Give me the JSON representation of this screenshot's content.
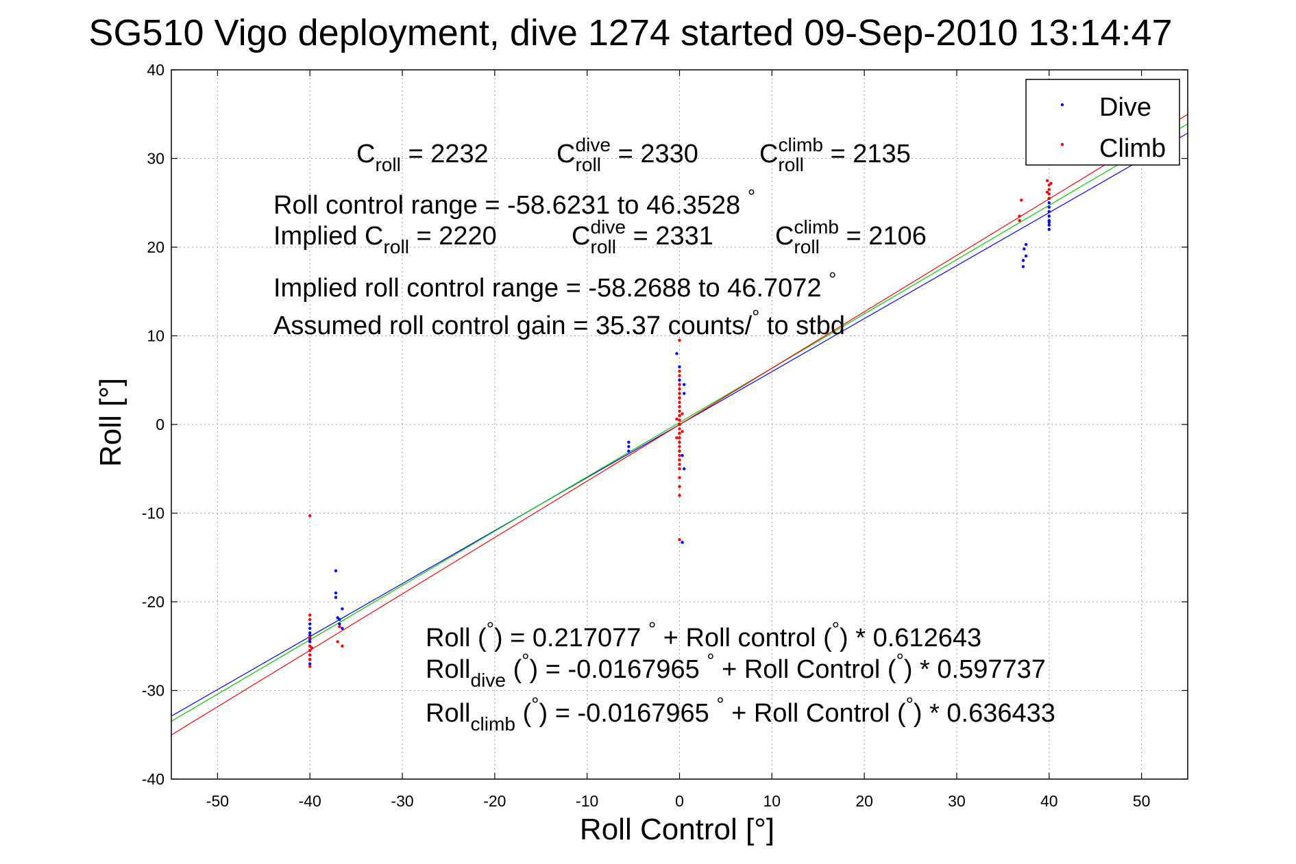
{
  "chart_data": {
    "type": "scatter",
    "title": "SG510 Vigo deployment, dive 1274 started 09-Sep-2010 13:14:47",
    "xlabel": "Roll Control [°]",
    "ylabel": "Roll [°]",
    "xlim": [
      -55,
      55
    ],
    "ylim": [
      -40,
      40
    ],
    "xticks": [
      -50,
      -40,
      -30,
      -20,
      -10,
      0,
      10,
      20,
      30,
      40,
      50
    ],
    "yticks": [
      -40,
      -30,
      -20,
      -10,
      0,
      10,
      20,
      30,
      40
    ],
    "grid": true,
    "legend_position": "top-right",
    "legend": [
      {
        "label": "Dive",
        "color": "#0000ff"
      },
      {
        "label": "Climb",
        "color": "#ff0000"
      }
    ],
    "series": [
      {
        "name": "Dive",
        "color": "#0000ff",
        "points": [
          [
            -40,
            -23.0
          ],
          [
            -40,
            -23.5
          ],
          [
            -40,
            -24.0
          ],
          [
            -40,
            -24.5
          ],
          [
            -40,
            -25.0
          ],
          [
            -40,
            -25.5
          ],
          [
            -40,
            -26.0
          ],
          [
            -40,
            -26.5
          ],
          [
            -40,
            -27.0
          ],
          [
            -40,
            -24.2
          ],
          [
            -40,
            -23.8
          ],
          [
            -40,
            -22.5
          ],
          [
            -37.2,
            -16.5
          ],
          [
            -37.2,
            -19.0
          ],
          [
            -37.2,
            -19.5
          ],
          [
            -37.0,
            -21.8
          ],
          [
            -36.8,
            -22.0
          ],
          [
            -36.8,
            -22.5
          ],
          [
            -36.5,
            -20.8
          ],
          [
            -36.5,
            -23.0
          ],
          [
            -5.5,
            -2.0
          ],
          [
            -5.5,
            -2.5
          ],
          [
            -5.5,
            -3.0
          ],
          [
            -0.3,
            8.0
          ],
          [
            0,
            6.5
          ],
          [
            0,
            5.0
          ],
          [
            0,
            3.0
          ],
          [
            0,
            2.0
          ],
          [
            0,
            1.0
          ],
          [
            0,
            0
          ],
          [
            0,
            -1.0
          ],
          [
            0,
            -2.0
          ],
          [
            0,
            -3.0
          ],
          [
            0.3,
            -3.5
          ],
          [
            0,
            -4.0
          ],
          [
            0.5,
            -5.0
          ],
          [
            0.5,
            4.5
          ],
          [
            0.5,
            3.5
          ],
          [
            0.3,
            -13.3
          ],
          [
            37.2,
            17.8
          ],
          [
            37.2,
            18.5
          ],
          [
            37.5,
            19.0
          ],
          [
            37.3,
            19.8
          ],
          [
            37.5,
            20.3
          ],
          [
            40,
            22.0
          ],
          [
            40,
            22.8
          ],
          [
            40,
            23.5
          ],
          [
            40,
            24.0
          ],
          [
            40,
            24.5
          ],
          [
            40,
            25.0
          ],
          [
            40,
            25.5
          ],
          [
            40,
            23.0
          ],
          [
            40,
            22.5
          ]
        ]
      },
      {
        "name": "Climb",
        "color": "#ff0000",
        "points": [
          [
            -40,
            -10.3
          ],
          [
            -40,
            -21.5
          ],
          [
            -40,
            -22.0
          ],
          [
            -40,
            -24.0
          ],
          [
            -40,
            -25.0
          ],
          [
            -40,
            -25.5
          ],
          [
            -40,
            -26.0
          ],
          [
            -40,
            -26.5
          ],
          [
            -40,
            -27.3
          ],
          [
            -39.8,
            -25.2
          ],
          [
            -37.0,
            -24.5
          ],
          [
            -36.8,
            -22.8
          ],
          [
            -36.5,
            -25.0
          ],
          [
            0,
            9.5
          ],
          [
            0,
            6.0
          ],
          [
            0,
            5.5
          ],
          [
            0,
            4.5
          ],
          [
            0,
            4.0
          ],
          [
            0,
            3.5
          ],
          [
            0,
            3.0
          ],
          [
            0,
            2.5
          ],
          [
            0,
            2.0
          ],
          [
            0,
            1.5
          ],
          [
            0,
            1.0
          ],
          [
            0,
            0.5
          ],
          [
            0,
            0
          ],
          [
            0,
            -0.5
          ],
          [
            0,
            -1.0
          ],
          [
            0,
            -1.5
          ],
          [
            0,
            -2.0
          ],
          [
            0,
            -2.5
          ],
          [
            0,
            -3.0
          ],
          [
            0,
            -3.5
          ],
          [
            0,
            -4.0
          ],
          [
            0,
            -4.5
          ],
          [
            0,
            -5.0
          ],
          [
            0,
            -6.0
          ],
          [
            0,
            -7.0
          ],
          [
            0,
            -8.0
          ],
          [
            0,
            -13.0
          ],
          [
            0.3,
            1.2
          ],
          [
            0.3,
            -0.8
          ],
          [
            -0.3,
            0.6
          ],
          [
            -0.3,
            -1.5
          ],
          [
            36.8,
            23.5
          ],
          [
            37.0,
            25.3
          ],
          [
            36.8,
            23.0
          ],
          [
            39.8,
            27.5
          ],
          [
            40,
            27.0
          ],
          [
            40,
            26.5
          ],
          [
            40,
            26.0
          ],
          [
            40,
            25.5
          ],
          [
            40.2,
            27.2
          ],
          [
            39.8,
            26.2
          ]
        ]
      }
    ],
    "fit_lines": [
      {
        "color": "#0000ff",
        "intercept": -0.0167965,
        "slope": 0.597737
      },
      {
        "color": "#00cc00",
        "intercept": 0.217077,
        "slope": 0.612643
      },
      {
        "color": "#ff0000",
        "intercept": -0.0167965,
        "slope": 0.636433
      }
    ],
    "annotations": [
      {
        "id": "c_roll",
        "runs": [
          {
            "t": "C"
          },
          {
            "t": "roll",
            "sub": true
          },
          {
            "t": " = 2232"
          }
        ]
      },
      {
        "id": "c_roll_dive",
        "runs": [
          {
            "t": "C"
          },
          {
            "t": "dive",
            "sup": true
          },
          {
            "t": "roll",
            "sub": true
          },
          {
            "t": " = 2330"
          }
        ]
      },
      {
        "id": "c_roll_climb",
        "runs": [
          {
            "t": "C"
          },
          {
            "t": "climb",
            "sup": true
          },
          {
            "t": "roll",
            "sub": true
          },
          {
            "t": " = 2135"
          }
        ]
      },
      {
        "id": "range",
        "runs": [
          {
            "t": "Roll control range = -58.6231 to 46.3528 "
          },
          {
            "t": "°",
            "sup": true
          }
        ]
      },
      {
        "id": "implied_c_roll",
        "runs": [
          {
            "t": "Implied C"
          },
          {
            "t": "roll",
            "sub": true
          },
          {
            "t": " = 2220"
          }
        ]
      },
      {
        "id": "implied_c_roll_dive",
        "runs": [
          {
            "t": "C"
          },
          {
            "t": "dive",
            "sup": true
          },
          {
            "t": "roll",
            "sub": true
          },
          {
            "t": " = 2331"
          }
        ]
      },
      {
        "id": "implied_c_roll_climb",
        "runs": [
          {
            "t": "C"
          },
          {
            "t": "climb",
            "sup": true
          },
          {
            "t": "roll",
            "sub": true
          },
          {
            "t": " = 2106"
          }
        ]
      },
      {
        "id": "implied_range",
        "runs": [
          {
            "t": "Implied roll control range = -58.2688 to 46.7072 "
          },
          {
            "t": "°",
            "sup": true
          }
        ]
      },
      {
        "id": "gain",
        "runs": [
          {
            "t": "Assumed roll control gain = 35.37 counts/"
          },
          {
            "t": "°",
            "sup": true
          },
          {
            "t": " to stbd"
          }
        ]
      },
      {
        "id": "fit_all",
        "runs": [
          {
            "t": "Roll ("
          },
          {
            "t": "°",
            "sup": true
          },
          {
            "t": ") = 0.217077 "
          },
          {
            "t": "°",
            "sup": true
          },
          {
            "t": " + Roll control ("
          },
          {
            "t": "°",
            "sup": true
          },
          {
            "t": ") * 0.612643"
          }
        ]
      },
      {
        "id": "fit_dive",
        "runs": [
          {
            "t": "Roll"
          },
          {
            "t": "dive",
            "sub": true
          },
          {
            "t": " ("
          },
          {
            "t": "°",
            "sup": true
          },
          {
            "t": ") = -0.0167965 "
          },
          {
            "t": "°",
            "sup": true
          },
          {
            "t": " + Roll Control ("
          },
          {
            "t": "°",
            "sup": true
          },
          {
            "t": ") * 0.597737"
          }
        ]
      },
      {
        "id": "fit_climb",
        "runs": [
          {
            "t": "Roll"
          },
          {
            "t": "climb",
            "sub": true
          },
          {
            "t": " ("
          },
          {
            "t": "°",
            "sup": true
          },
          {
            "t": ") = -0.0167965 "
          },
          {
            "t": "°",
            "sup": true
          },
          {
            "t": " + Roll Control ("
          },
          {
            "t": "°",
            "sup": true
          },
          {
            "t": ") * 0.636433"
          }
        ]
      }
    ]
  }
}
